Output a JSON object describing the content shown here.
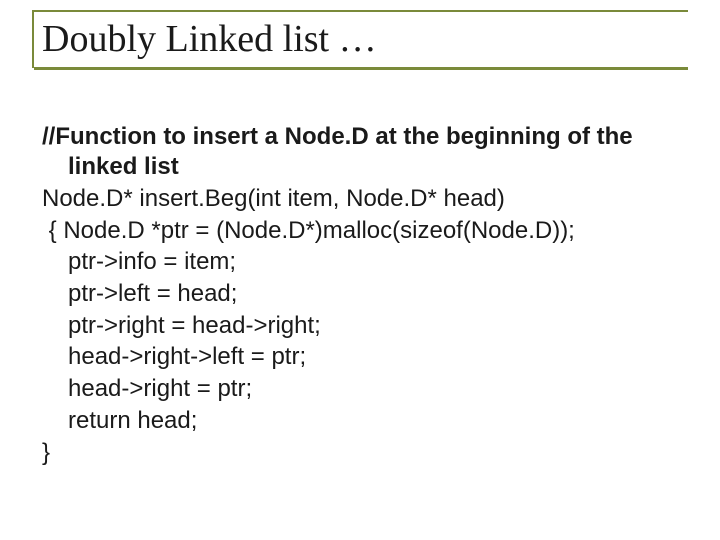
{
  "title": "Doubly Linked list …",
  "comment_line1": "//Function to insert a Node.D at the beginning of the",
  "comment_line2": "linked list",
  "code": {
    "sig": "Node.D* insert.Beg(int item, Node.D* head)",
    "open": " { Node.D *ptr = (Node.D*)malloc(sizeof(Node.D));",
    "l1": "ptr->info = item;",
    "l2": "ptr->left = head;",
    "l3": "ptr->right = head->right;",
    "l4": "head->right->left = ptr;",
    "l5": "head->right = ptr;",
    "l6": "return head;",
    "close": "}"
  },
  "colors": {
    "border": "#7a8a3a",
    "text": "#1a1a1a",
    "background": "#ffffff"
  },
  "typography": {
    "title_font": "Times New Roman",
    "title_size_pt": 38,
    "body_font": "Arial",
    "body_size_pt": 24
  }
}
